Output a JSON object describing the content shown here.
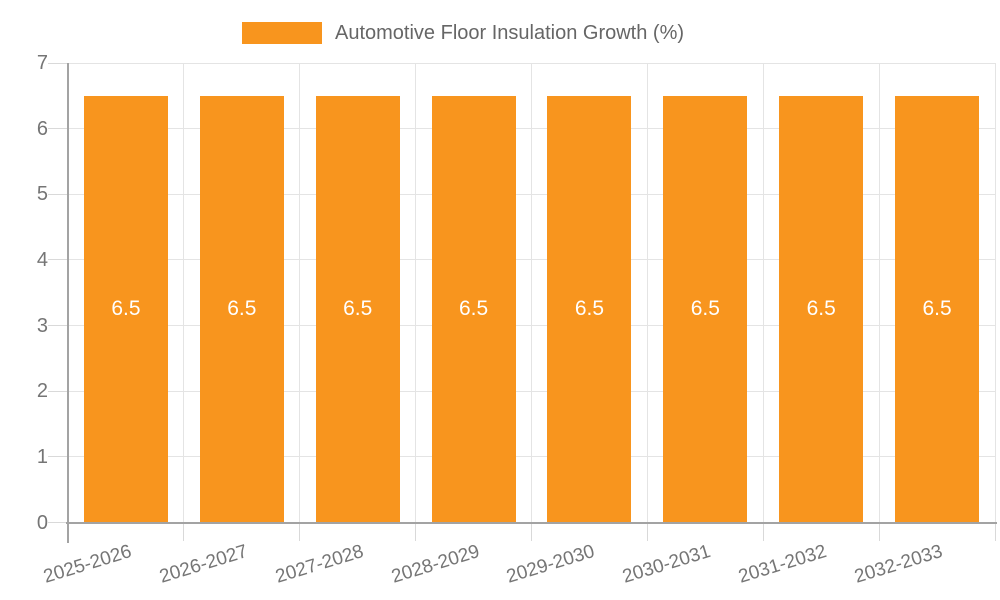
{
  "chart_data": {
    "type": "bar",
    "title": "Automotive Floor Insulation Growth (%)",
    "categories": [
      "2025-2026",
      "2026-2027",
      "2027-2028",
      "2028-2029",
      "2029-2030",
      "2030-2031",
      "2031-2032",
      "2032-2033"
    ],
    "values": [
      6.5,
      6.5,
      6.5,
      6.5,
      6.5,
      6.5,
      6.5,
      6.5
    ],
    "value_labels": [
      "6.5",
      "6.5",
      "6.5",
      "6.5",
      "6.5",
      "6.5",
      "6.5",
      "6.5"
    ],
    "xlabel": "",
    "ylabel": "",
    "ylim": [
      0,
      7
    ],
    "yticks": [
      0,
      1,
      2,
      3,
      4,
      5,
      6,
      7
    ],
    "grid": true,
    "legend_position": "top-center",
    "legend_label": "Automotive Floor Insulation Growth (%)"
  },
  "colors": {
    "bar": "#f8951e",
    "value_label": "#ffffff",
    "grid": "#e4e4e4",
    "axis": "#a3a3a3",
    "tick": "#d9d9d9",
    "axis_text": "#757575",
    "legend_text": "#666666"
  }
}
